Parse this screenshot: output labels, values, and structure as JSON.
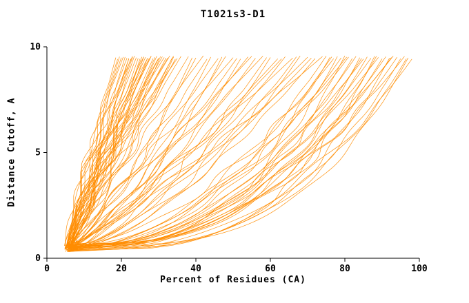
{
  "chart_data": {
    "type": "line",
    "title": "T1021s3-D1",
    "xlabel": "Percent of Residues (CA)",
    "ylabel": "Distance Cutoff, A",
    "xlim": [
      0,
      100
    ],
    "ylim": [
      0,
      10
    ],
    "x_ticks": [
      0,
      20,
      40,
      60,
      80,
      100
    ],
    "y_ticks": [
      0,
      5,
      10
    ],
    "grid": false,
    "legend": "none",
    "line_color": "#ff8c00",
    "axis_color": "#000000",
    "curve_model": "x(y) = x_start + (x_top - x_start) * t^shape, t=(y-y_bottom)/(y_top-y_bottom); each curve is one model's cumulative percent of CA residues under a distance cutoff",
    "curves": [
      [
        5.1,
        19,
        1.2
      ],
      [
        5.6,
        21,
        1.05
      ],
      [
        6.2,
        22,
        0.95
      ],
      [
        4.8,
        23,
        1.3
      ],
      [
        5.9,
        24,
        1.1
      ],
      [
        6.4,
        25,
        0.9
      ],
      [
        5.3,
        26,
        1.25
      ],
      [
        6.8,
        27,
        1.0
      ],
      [
        5.0,
        28,
        1.15
      ],
      [
        6.1,
        29,
        0.92
      ],
      [
        5.7,
        30,
        1.08
      ],
      [
        6.5,
        31,
        1.22
      ],
      [
        4.9,
        32,
        0.98
      ],
      [
        5.4,
        33,
        1.12
      ],
      [
        6.9,
        34,
        0.88
      ],
      [
        5.2,
        35,
        1.18
      ],
      [
        6.0,
        36,
        1.02
      ],
      [
        5.8,
        20,
        1.28
      ],
      [
        6.3,
        22.5,
        1.07
      ],
      [
        5.5,
        25.5,
        0.93
      ],
      [
        4.7,
        27.5,
        1.16
      ],
      [
        6.6,
        29.5,
        1.0
      ],
      [
        5.05,
        31.5,
        1.24
      ],
      [
        6.15,
        33.5,
        0.9
      ],
      [
        5.45,
        19.5,
        1.1
      ],
      [
        6.7,
        21.5,
        1.3
      ],
      [
        4.95,
        23.5,
        0.96
      ],
      [
        5.85,
        26.5,
        1.14
      ],
      [
        6.25,
        28.5,
        1.04
      ],
      [
        5.15,
        30.5,
        0.86
      ],
      [
        6.45,
        32.5,
        1.2
      ],
      [
        5.65,
        34.5,
        1.0
      ],
      [
        4.85,
        20.5,
        1.26
      ],
      [
        6.05,
        24.5,
        0.94
      ],
      [
        5.35,
        28,
        1.1
      ],
      [
        6.55,
        18.5,
        1.18
      ],
      [
        5.25,
        22,
        1.06
      ],
      [
        6.35,
        26,
        0.9
      ],
      [
        5.75,
        30,
        1.22
      ],
      [
        4.75,
        34,
        0.98
      ],
      [
        6.85,
        23,
        1.12
      ],
      [
        5.95,
        27,
        1.3
      ],
      [
        5.2,
        38,
        0.95
      ],
      [
        6.1,
        40,
        0.8
      ],
      [
        5.6,
        42,
        1.05
      ],
      [
        6.4,
        44,
        0.7
      ],
      [
        4.9,
        46,
        0.9
      ],
      [
        5.8,
        48,
        0.75
      ],
      [
        6.2,
        50,
        1.0
      ],
      [
        5.3,
        52,
        0.65
      ],
      [
        6.6,
        54,
        0.85
      ],
      [
        5.1,
        56,
        0.72
      ],
      [
        5.9,
        58,
        0.95
      ],
      [
        6.3,
        60,
        0.6
      ],
      [
        5.5,
        62,
        0.82
      ],
      [
        6.0,
        64,
        0.7
      ],
      [
        5.4,
        66,
        0.9
      ],
      [
        6.5,
        68,
        0.58
      ],
      [
        5.0,
        70,
        0.78
      ],
      [
        6.2,
        72,
        0.66
      ],
      [
        5.7,
        74,
        0.88
      ],
      [
        5.25,
        39,
        0.7
      ],
      [
        6.15,
        43,
        0.92
      ],
      [
        5.55,
        47,
        0.62
      ],
      [
        6.35,
        51,
        0.8
      ],
      [
        5.05,
        55,
        0.95
      ],
      [
        5.95,
        59,
        0.68
      ],
      [
        6.45,
        63,
        0.85
      ],
      [
        5.35,
        67,
        0.6
      ],
      [
        5.65,
        71,
        0.75
      ],
      [
        5.5,
        75,
        0.5
      ],
      [
        6.2,
        76,
        0.42
      ],
      [
        5.8,
        77,
        0.55
      ],
      [
        6.0,
        78,
        0.38
      ],
      [
        5.2,
        79,
        0.48
      ],
      [
        6.4,
        80,
        0.35
      ],
      [
        5.6,
        81,
        0.52
      ],
      [
        5.9,
        82,
        0.4
      ],
      [
        6.1,
        83,
        0.45
      ],
      [
        5.3,
        84,
        0.33
      ],
      [
        6.3,
        85,
        0.5
      ],
      [
        5.7,
        86,
        0.37
      ],
      [
        6.0,
        87,
        0.44
      ],
      [
        5.4,
        88,
        0.3
      ],
      [
        6.2,
        89,
        0.48
      ],
      [
        5.8,
        90,
        0.36
      ],
      [
        5.5,
        91,
        0.42
      ],
      [
        6.1,
        92,
        0.32
      ],
      [
        5.9,
        93,
        0.46
      ],
      [
        5.2,
        94,
        0.38
      ],
      [
        6.3,
        95,
        0.34
      ],
      [
        5.6,
        96,
        0.44
      ],
      [
        6.0,
        97,
        0.3
      ],
      [
        5.45,
        98,
        0.4
      ],
      [
        6.15,
        80.5,
        0.55
      ],
      [
        5.75,
        84.5,
        0.42
      ],
      [
        6.25,
        88.5,
        0.35
      ],
      [
        5.35,
        92.5,
        0.45
      ],
      [
        5.85,
        96.5,
        0.33
      ],
      [
        6.05,
        76.5,
        0.5
      ]
    ]
  }
}
